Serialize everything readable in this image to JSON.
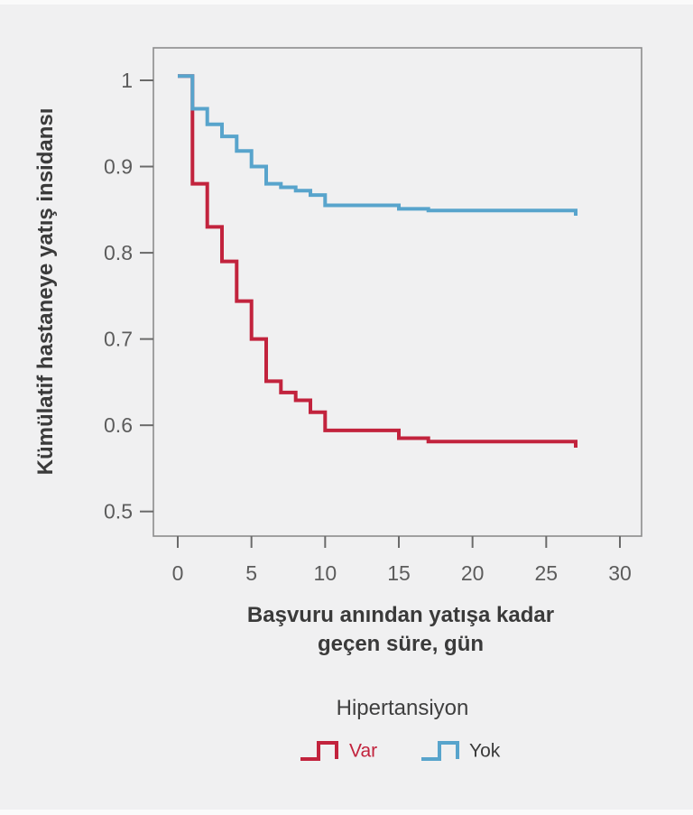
{
  "figure": {
    "y_axis_title": "Kümülatif hastaneye yatış insidansı",
    "x_axis_title_line1": "Başvuru anından yatışa kadar",
    "x_axis_title_line2": "geçen süre, gün",
    "y_tick_labels": [
      "1",
      "0.9",
      "0.8",
      "0.7",
      "0.6",
      "0.5"
    ],
    "x_tick_labels": [
      "0",
      "5",
      "10",
      "15",
      "20",
      "25",
      "30"
    ]
  },
  "legend": {
    "title": "Hipertansiyon",
    "items": [
      {
        "label": "Var",
        "color": "#c2233d",
        "label_color": "#c2233d"
      },
      {
        "label": "Yok",
        "color": "#58a4cc",
        "label_color": "#3a3a3a"
      }
    ]
  },
  "colors": {
    "background": "#f0f0f1",
    "frame": "#8d8d8d",
    "tick": "#6a6a6a",
    "tick_label": "#5c5c5c",
    "axis_title": "#3a3a3a",
    "series_var": "#c2233d",
    "series_yok": "#58a4cc"
  },
  "chart_data": {
    "type": "line",
    "subtype": "kaplan-meier-step",
    "title": "",
    "xlabel": "Başvuru anından yatışa kadar geçen süre, gün",
    "ylabel": "Kümülatif hastaneye yatış insidansı",
    "legend_title": "Hipertansiyon",
    "legend_position": "bottom",
    "grid": false,
    "xlim": [
      -1.7,
      31.5
    ],
    "ylim": [
      0.47,
      1.04
    ],
    "x_tick_values": [
      0,
      5,
      10,
      15,
      20,
      25,
      30
    ],
    "y_tick_values": [
      1.0,
      0.9,
      0.8,
      0.7,
      0.6,
      0.5
    ],
    "series": [
      {
        "name": "Var",
        "color": "#c2233d",
        "steps": [
          [
            0,
            1.005
          ],
          [
            1,
            0.88
          ],
          [
            2,
            0.83
          ],
          [
            3,
            0.79
          ],
          [
            4,
            0.744
          ],
          [
            5,
            0.7
          ],
          [
            6,
            0.651
          ],
          [
            7,
            0.638
          ],
          [
            8,
            0.629
          ],
          [
            9,
            0.615
          ],
          [
            10,
            0.594
          ],
          [
            15,
            0.585
          ],
          [
            17,
            0.581
          ],
          [
            27,
            0.574
          ]
        ]
      },
      {
        "name": "Yok",
        "color": "#58a4cc",
        "steps": [
          [
            0,
            1.005
          ],
          [
            1,
            0.967
          ],
          [
            2,
            0.949
          ],
          [
            3,
            0.935
          ],
          [
            4,
            0.918
          ],
          [
            5,
            0.9
          ],
          [
            6,
            0.88
          ],
          [
            7,
            0.876
          ],
          [
            8,
            0.872
          ],
          [
            9,
            0.867
          ],
          [
            10,
            0.855
          ],
          [
            15,
            0.851
          ],
          [
            17,
            0.849
          ],
          [
            27,
            0.843
          ]
        ]
      }
    ]
  }
}
